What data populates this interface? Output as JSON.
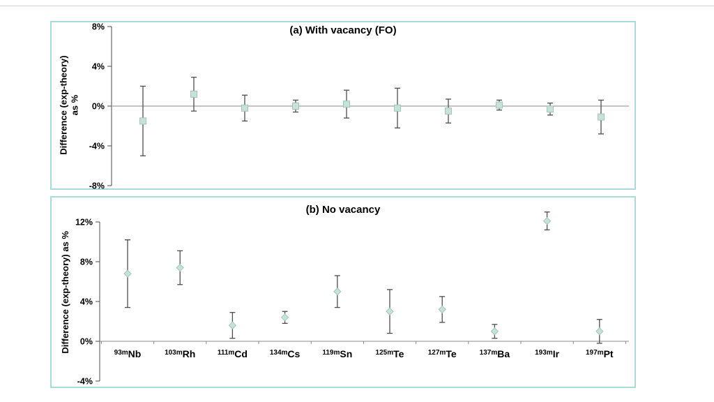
{
  "style": {
    "panel_border": "#a9dcd8",
    "marker_fill": "#c9e2d9",
    "marker_stroke": "#a0c6b9",
    "error_bar": "#4d4d4d",
    "zero_line": "#8a8a8a",
    "axis": "#4d4d4d",
    "text": "#000000"
  },
  "chart_data": [
    {
      "id": "a",
      "type": "scatter",
      "title": "(a) With vacancy (FO)",
      "ylabel": "Difference (exp-theory) as %",
      "ylabel_lines": [
        "Difference (exp-theory)",
        "as %"
      ],
      "ylim": [
        -8,
        8
      ],
      "grid": false,
      "legend": "none",
      "marker": "square",
      "show_x_labels": false,
      "yticks": [
        {
          "value": 8,
          "label": "8%"
        },
        {
          "value": 4,
          "label": "4%"
        },
        {
          "value": 0,
          "label": "0%"
        },
        {
          "value": -4,
          "label": "-4%"
        },
        {
          "value": -8,
          "label": "-8%"
        }
      ],
      "points": [
        {
          "isotope": "93m",
          "element": "Nb",
          "value": -1.5,
          "error": 3.5
        },
        {
          "isotope": "103m",
          "element": "Rh",
          "value": 1.2,
          "error": 1.7
        },
        {
          "isotope": "111m",
          "element": "Cd",
          "value": -0.2,
          "error": 1.3
        },
        {
          "isotope": "134m",
          "element": "Cs",
          "value": 0.0,
          "error": 0.6
        },
        {
          "isotope": "119m",
          "element": "Sn",
          "value": 0.2,
          "error": 1.4
        },
        {
          "isotope": "125m",
          "element": "Te",
          "value": -0.2,
          "error": 2.0
        },
        {
          "isotope": "127m",
          "element": "Te",
          "value": -0.5,
          "error": 1.2
        },
        {
          "isotope": "137m",
          "element": "Ba",
          "value": 0.1,
          "error": 0.5
        },
        {
          "isotope": "193m",
          "element": "Ir",
          "value": -0.3,
          "error": 0.6
        },
        {
          "isotope": "197m",
          "element": "Pt",
          "value": -1.1,
          "error": 1.7
        }
      ]
    },
    {
      "id": "b",
      "type": "scatter",
      "title": "(b) No vacancy",
      "ylabel": "Difference (exp-theory) as %",
      "ylabel_lines": [
        "Difference (exp-theory) as %"
      ],
      "ylim": [
        -4,
        12
      ],
      "grid": false,
      "legend": "none",
      "marker": "diamond",
      "show_x_labels": true,
      "yticks": [
        {
          "value": 12,
          "label": "12%"
        },
        {
          "value": 8,
          "label": "8%"
        },
        {
          "value": 4,
          "label": "4%"
        },
        {
          "value": 0,
          "label": "0%"
        },
        {
          "value": -4,
          "label": "-4%"
        }
      ],
      "points": [
        {
          "isotope": "93m",
          "element": "Nb",
          "value": 6.8,
          "error": 3.4
        },
        {
          "isotope": "103m",
          "element": "Rh",
          "value": 7.4,
          "error": 1.7
        },
        {
          "isotope": "111m",
          "element": "Cd",
          "value": 1.6,
          "error": 1.3
        },
        {
          "isotope": "134m",
          "element": "Cs",
          "value": 2.4,
          "error": 0.6
        },
        {
          "isotope": "119m",
          "element": "Sn",
          "value": 5.0,
          "error": 1.6
        },
        {
          "isotope": "125m",
          "element": "Te",
          "value": 3.0,
          "error": 2.2
        },
        {
          "isotope": "127m",
          "element": "Te",
          "value": 3.2,
          "error": 1.3
        },
        {
          "isotope": "137m",
          "element": "Ba",
          "value": 1.0,
          "error": 0.7
        },
        {
          "isotope": "193m",
          "element": "Ir",
          "value": 12.1,
          "error": 0.9
        },
        {
          "isotope": "197m",
          "element": "Pt",
          "value": 1.0,
          "error": 1.2
        }
      ]
    }
  ]
}
